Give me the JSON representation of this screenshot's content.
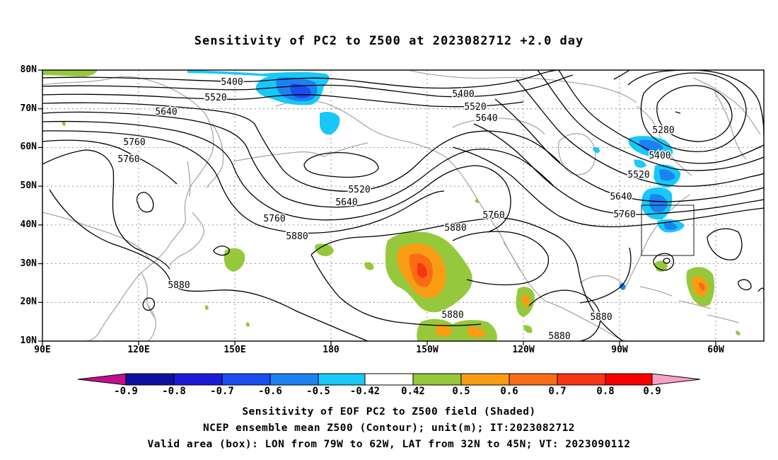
{
  "title": "Sensitivity of PC2 to Z500 at 2023082712 +2.0 day",
  "lat_labels": [
    "80N",
    "70N",
    "60N",
    "50N",
    "40N",
    "30N",
    "20N",
    "10N"
  ],
  "lon_labels": [
    "90E",
    "120E",
    "150E",
    "180",
    "150W",
    "120W",
    "90W",
    "60W"
  ],
  "contour_labels": [
    "5400",
    "5520",
    "5640",
    "5760",
    "5760",
    "5400",
    "5520",
    "5640",
    "5280",
    "5400",
    "5520",
    "5640",
    "5760",
    "5520",
    "5640",
    "5760",
    "5880",
    "5880",
    "5880",
    "5880",
    "5880",
    "5880",
    "5760"
  ],
  "colorbar": {
    "labels": [
      "-0.9",
      "-0.8",
      "-0.7",
      "-0.6",
      "-0.5",
      "-0.42",
      "0.42",
      "0.5",
      "0.6",
      "0.7",
      "0.8",
      "0.9"
    ],
    "colors": [
      "#c0108c",
      "#1010a0",
      "#1c1cd8",
      "#1a4cf0",
      "#1c82f0",
      "#18c8f8",
      "#ffffff",
      "#96c83c",
      "#f89c14",
      "#f86c14",
      "#f83414",
      "#f80000",
      "#f8a0c8"
    ]
  },
  "captions": [
    "Sensitivity of EOF PC2 to Z500 field (Shaded)",
    "NCEP ensemble mean Z500 (Contour); unit(m); IT:2023082712",
    "Valid area (box): LON from 79W to 62W, LAT from 32N to 45N; VT: 2023090112"
  ]
}
